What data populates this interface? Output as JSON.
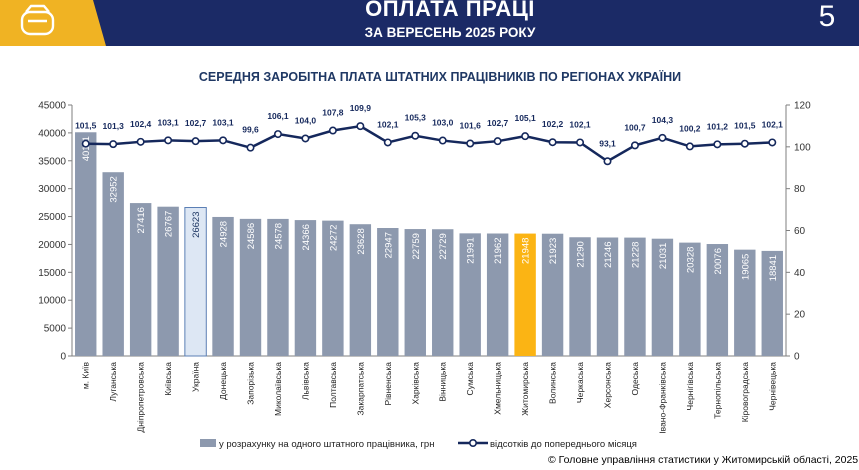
{
  "header": {
    "title": "ОПЛАТА ПРАЦІ",
    "subtitle": "ЗА ВЕРЕСЕНЬ 2025 РОКУ",
    "page_number": "5"
  },
  "colors": {
    "navy": "#1b2a66",
    "gold": "#f0b323",
    "bar": "#8d99ae",
    "bar_ukraine": "#dde7f4",
    "bar_ukraine_border": "#5b7fb5",
    "bar_highlight": "#fbb414",
    "line": "#15285c"
  },
  "chart_data": {
    "type": "bar",
    "title": "СЕРЕДНЯ ЗАРОБІТНА ПЛАТА ШТАТНИХ ПРАЦІВНИКІВ ПО РЕГІОНАХ УКРАЇНИ",
    "categories": [
      "м. Київ",
      "Луганська",
      "Дніпропетровська",
      "Київська",
      "Україна",
      "Донецька",
      "Запорізька",
      "Миколаївська",
      "Львівська",
      "Полтавська",
      "Закарпатська",
      "Рівненська",
      "Харківська",
      "Вінницька",
      "Сумська",
      "Хмельницька",
      "Житомирська",
      "Волинська",
      "Черкаська",
      "Херсонська",
      "Одеська",
      "Івано-Франківська",
      "Чернігівська",
      "Тернопільська",
      "Кіровоградська",
      "Чернівецька"
    ],
    "series": [
      {
        "name": "у розрахунку на одного штатного працівника, грн",
        "axis": "left",
        "type": "bar",
        "values": [
          40111,
          32952,
          27416,
          26767,
          26623,
          24928,
          24586,
          24578,
          24366,
          24272,
          23628,
          22947,
          22759,
          22729,
          21991,
          21962,
          21948,
          21923,
          21290,
          21246,
          21228,
          21031,
          20328,
          20076,
          19065,
          18841
        ]
      },
      {
        "name": "відсотків до попереднього місяця",
        "axis": "right",
        "type": "line",
        "values": [
          101.5,
          101.3,
          102.4,
          103.1,
          102.7,
          103.1,
          99.6,
          106.1,
          104.0,
          107.8,
          109.9,
          102.1,
          105.3,
          103.0,
          101.6,
          102.7,
          105.1,
          102.2,
          102.1,
          93.1,
          100.7,
          104.3,
          100.2,
          101.2,
          101.5,
          102.1
        ],
        "labels": [
          "101,5",
          "101,3",
          "102,4",
          "103,1",
          "102,7",
          "103,1",
          "99,6",
          "106,1",
          "104,0",
          "107,8",
          "109,9",
          "102,1",
          "105,3",
          "103,0",
          "101,6",
          "102,7",
          "105,1",
          "102,2",
          "102,1",
          "93,1",
          "100,7",
          "104,3",
          "100,2",
          "101,2",
          "101,5",
          "102,1"
        ]
      }
    ],
    "highlight": {
      "Україна": "ukraine",
      "Житомирська": "highlight"
    },
    "ylim_left": [
      0,
      45000
    ],
    "yticks_left": [
      0,
      5000,
      10000,
      15000,
      20000,
      25000,
      30000,
      35000,
      40000,
      45000
    ],
    "ylim_right": [
      0,
      120
    ],
    "yticks_right": [
      0,
      20,
      40,
      60,
      80,
      100,
      120
    ],
    "legend_position": "bottom"
  },
  "footer": {
    "source": "© Головне управління статистики у Житомирській області, 2025"
  }
}
